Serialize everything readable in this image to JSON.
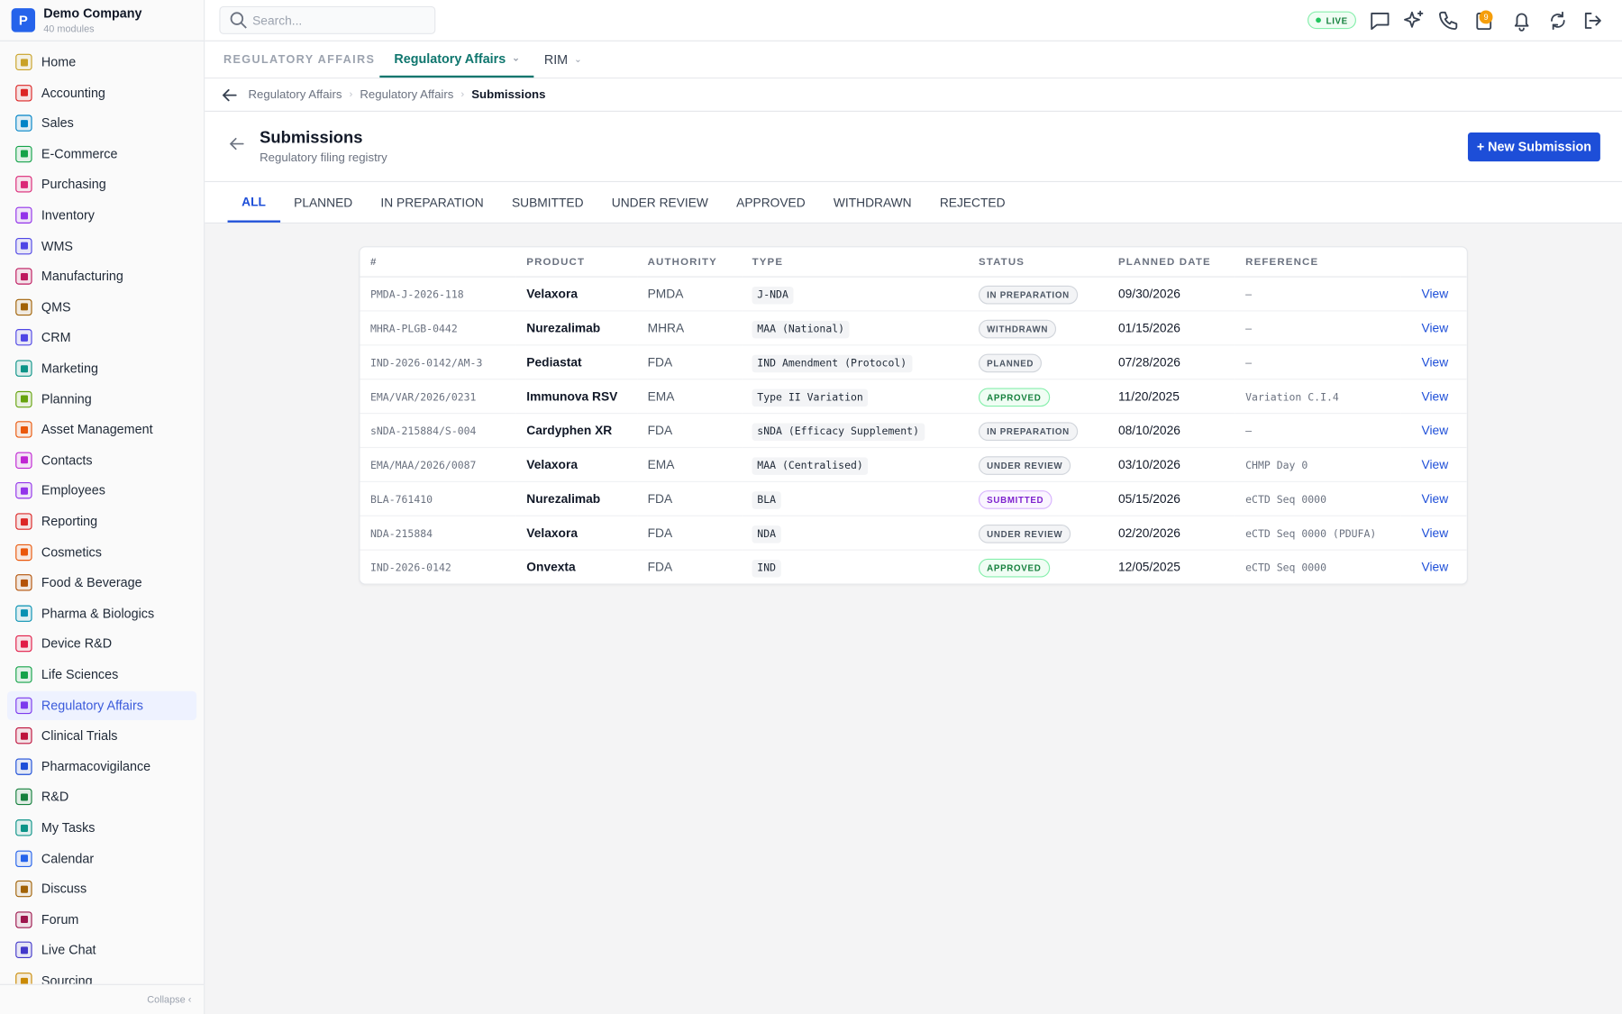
{
  "company": {
    "logo": "P",
    "name": "Demo Company",
    "subtitle": "40 modules"
  },
  "search_placeholder": "Search...",
  "live_label": "LIVE",
  "notification_count": 9,
  "sidebar": {
    "items": [
      {
        "label": "Home",
        "color": "#c9a227"
      },
      {
        "label": "Accounting",
        "color": "#dc2626"
      },
      {
        "label": "Sales",
        "color": "#0284c7"
      },
      {
        "label": "E-Commerce",
        "color": "#16a34a"
      },
      {
        "label": "Purchasing",
        "color": "#db2777"
      },
      {
        "label": "Inventory",
        "color": "#9333ea"
      },
      {
        "label": "WMS",
        "color": "#4f46e5"
      },
      {
        "label": "Manufacturing",
        "color": "#be185d"
      },
      {
        "label": "QMS",
        "color": "#a16207"
      },
      {
        "label": "CRM",
        "color": "#4f46e5"
      },
      {
        "label": "Marketing",
        "color": "#0d9488"
      },
      {
        "label": "Planning",
        "color": "#65a30d"
      },
      {
        "label": "Asset Management",
        "color": "#ea580c"
      },
      {
        "label": "Contacts",
        "color": "#c026d3"
      },
      {
        "label": "Employees",
        "color": "#9333ea"
      },
      {
        "label": "Reporting",
        "color": "#dc2626"
      },
      {
        "label": "Cosmetics",
        "color": "#ea580c"
      },
      {
        "label": "Food & Beverage",
        "color": "#b45309"
      },
      {
        "label": "Pharma & Biologics",
        "color": "#0891b2"
      },
      {
        "label": "Device R&D",
        "color": "#e11d48"
      },
      {
        "label": "Life Sciences",
        "color": "#16a34a"
      },
      {
        "label": "Regulatory Affairs",
        "color": "#7c3aed",
        "active": true
      },
      {
        "label": "Clinical Trials",
        "color": "#be123c"
      },
      {
        "label": "Pharmacovigilance",
        "color": "#1d4ed8"
      },
      {
        "label": "R&D",
        "color": "#15803d"
      },
      {
        "label": "My Tasks",
        "color": "#0d9488"
      },
      {
        "label": "Calendar",
        "color": "#2563eb"
      },
      {
        "label": "Discuss",
        "color": "#a16207"
      },
      {
        "label": "Forum",
        "color": "#9d174d"
      },
      {
        "label": "Live Chat",
        "color": "#4338ca"
      },
      {
        "label": "Sourcing",
        "color": "#ca8a04"
      }
    ],
    "collapse": "Collapse"
  },
  "module_tabs": {
    "section": "REGULATORY AFFAIRS",
    "tabs": [
      {
        "label": "Regulatory Affairs",
        "active": true
      },
      {
        "label": "RIM"
      }
    ]
  },
  "breadcrumb": [
    "Regulatory Affairs",
    "Regulatory Affairs",
    "Submissions"
  ],
  "page": {
    "title": "Submissions",
    "subtitle": "Regulatory filing registry",
    "new_button": "+ New Submission"
  },
  "status_tabs": [
    "ALL",
    "PLANNED",
    "IN PREPARATION",
    "SUBMITTED",
    "UNDER REVIEW",
    "APPROVED",
    "WITHDRAWN",
    "REJECTED"
  ],
  "table": {
    "columns": [
      "#",
      "PRODUCT",
      "AUTHORITY",
      "TYPE",
      "STATUS",
      "PLANNED DATE",
      "REFERENCE"
    ],
    "rows": [
      {
        "id": "PMDA-J-2026-118",
        "product": "Velaxora",
        "authority": "PMDA",
        "type": "J-NDA",
        "status": {
          "label": "IN PREPARATION",
          "color": "gray"
        },
        "planned_date": "09/30/2026",
        "reference": "–",
        "action": "View"
      },
      {
        "id": "MHRA-PLGB-0442",
        "product": "Nurezalimab",
        "authority": "MHRA",
        "type": "MAA (National)",
        "status": {
          "label": "WITHDRAWN",
          "color": "gray"
        },
        "planned_date": "01/15/2026",
        "reference": "–",
        "action": "View"
      },
      {
        "id": "IND-2026-0142/AM-3",
        "product": "Pediastat",
        "authority": "FDA",
        "type": "IND Amendment (Protocol)",
        "status": {
          "label": "PLANNED",
          "color": "gray"
        },
        "planned_date": "07/28/2026",
        "reference": "–",
        "action": "View"
      },
      {
        "id": "EMA/VAR/2026/0231",
        "product": "Immunova RSV",
        "authority": "EMA",
        "type": "Type II Variation",
        "status": {
          "label": "APPROVED",
          "color": "green"
        },
        "planned_date": "11/20/2025",
        "reference": "Variation C.I.4",
        "action": "View"
      },
      {
        "id": "sNDA-215884/S-004",
        "product": "Cardyphen XR",
        "authority": "FDA",
        "type": "sNDA (Efficacy Supplement)",
        "status": {
          "label": "IN PREPARATION",
          "color": "gray"
        },
        "planned_date": "08/10/2026",
        "reference": "–",
        "action": "View"
      },
      {
        "id": "EMA/MAA/2026/0087",
        "product": "Velaxora",
        "authority": "EMA",
        "type": "MAA (Centralised)",
        "status": {
          "label": "UNDER REVIEW",
          "color": "gray"
        },
        "planned_date": "03/10/2026",
        "reference": "CHMP Day 0",
        "action": "View"
      },
      {
        "id": "BLA-761410",
        "product": "Nurezalimab",
        "authority": "FDA",
        "type": "BLA",
        "status": {
          "label": "SUBMITTED",
          "color": "purple"
        },
        "planned_date": "05/15/2026",
        "reference": "eCTD Seq 0000",
        "action": "View"
      },
      {
        "id": "NDA-215884",
        "product": "Velaxora",
        "authority": "FDA",
        "type": "NDA",
        "status": {
          "label": "UNDER REVIEW",
          "color": "gray"
        },
        "planned_date": "02/20/2026",
        "reference": "eCTD Seq 0000 (PDUFA)",
        "action": "View"
      },
      {
        "id": "IND-2026-0142",
        "product": "Onvexta",
        "authority": "FDA",
        "type": "IND",
        "status": {
          "label": "APPROVED",
          "color": "green"
        },
        "planned_date": "12/05/2025",
        "reference": "eCTD Seq 0000",
        "action": "View"
      }
    ]
  }
}
